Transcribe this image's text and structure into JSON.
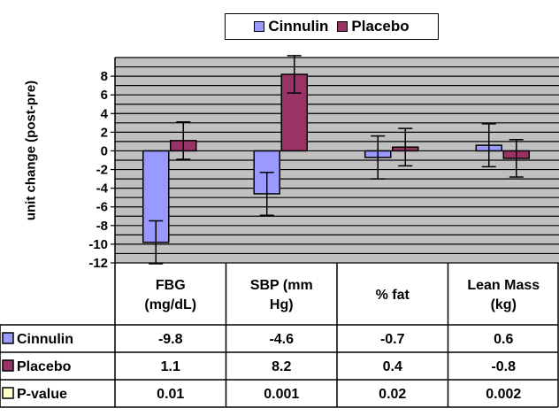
{
  "chart_data": {
    "type": "bar",
    "categories": [
      "FBG\n(mg/dL)",
      "SBP (mm\nHg)",
      "% fat",
      "Lean Mass\n(kg)"
    ],
    "series": [
      {
        "name": "Cinnulin",
        "values": [
          -9.8,
          -4.6,
          -0.7,
          0.6
        ],
        "errors": [
          2.3,
          2.3,
          2.3,
          2.3
        ],
        "color": "#9999ff"
      },
      {
        "name": "Placebo",
        "values": [
          1.1,
          8.2,
          0.4,
          -0.8
        ],
        "errors": [
          2.0,
          2.0,
          2.0,
          2.0
        ],
        "color": "#993366"
      }
    ],
    "table_rows": [
      {
        "name": "Cinnulin",
        "values": [
          "-9.8",
          "-4.6",
          "-0.7",
          "0.6"
        ],
        "color": "#9999ff"
      },
      {
        "name": "Placebo",
        "values": [
          "1.1",
          "8.2",
          "0.4",
          "-0.8"
        ],
        "color": "#993366"
      },
      {
        "name": "P-value",
        "values": [
          "0.01",
          "0.001",
          "0.02",
          "0.002"
        ],
        "color": "#ffffcc"
      }
    ],
    "ylabel": "unit change (post-pre)",
    "ylim": [
      -12,
      10
    ],
    "yticks": [
      8,
      6,
      4,
      2,
      0,
      -2,
      -4,
      -6,
      -8,
      -10,
      -12
    ],
    "grid": true,
    "legend_position": "top",
    "plot_background": "#c0c0c0"
  }
}
